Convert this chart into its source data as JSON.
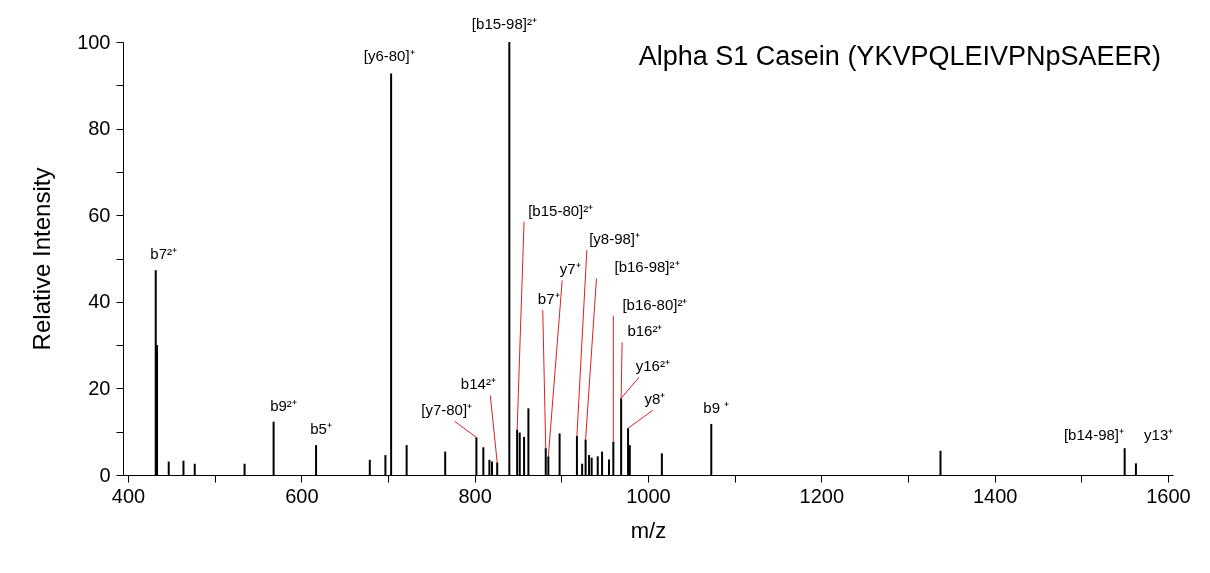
{
  "chart_data": {
    "type": "bar",
    "title": "Alpha S1 Casein (YKVPQLEIVPNpSAEER)",
    "xlabel": "m/z",
    "ylabel": "Relative Intensity",
    "x": [
      432,
      433.5,
      447,
      464,
      477,
      534.5,
      568,
      617,
      679,
      697,
      703.6,
      721.5,
      766,
      802,
      810,
      817,
      820,
      826,
      838,
      840,
      849,
      852,
      857,
      862,
      882,
      885,
      898,
      918,
      924,
      928,
      932,
      935,
      942,
      947,
      955,
      960,
      969,
      977,
      979,
      1016,
      1073,
      1337.5,
      1550,
      1563
    ],
    "series": [
      {
        "color": "#000000",
        "values": [
          47.3,
          30,
          3.1,
          3.3,
          2.6,
          2.6,
          12.3,
          6.9,
          3.5,
          4.6,
          92.7,
          6.9,
          5.4,
          8.7,
          6.4,
          3.5,
          3.1,
          2.9,
          null,
          100,
          10.5,
          9.8,
          8.8,
          15.4,
          6.2,
          4.3,
          9.6,
          9.0,
          2.6,
          8.2,
          4.6,
          4.0,
          4.3,
          5.4,
          3.6,
          7.7,
          17.7,
          10.8,
          6.9,
          5.0,
          11.8,
          5.6,
          6.2,
          2.7
        ]
      }
    ],
    "xlim": [
      400,
      1600
    ],
    "xticks": [
      400,
      {
        "value": 500,
        "label": null
      },
      600,
      {
        "value": 700,
        "label": null
      },
      800,
      {
        "value": 900,
        "label": null
      },
      1000,
      {
        "value": 1100,
        "label": null
      },
      1200,
      {
        "value": 1300,
        "label": null
      },
      1400,
      {
        "value": 1500,
        "label": null
      },
      1600
    ],
    "ylim": [
      0,
      100
    ],
    "yticks": [
      0,
      {
        "value": 10,
        "label": null
      },
      20,
      {
        "value": 30,
        "label": null
      },
      40,
      {
        "value": 50,
        "label": null
      },
      60,
      {
        "value": 70,
        "label": null
      },
      80,
      {
        "value": 90,
        "label": null
      },
      100
    ],
    "grid": false,
    "annotations": [
      {
        "text": "b7²⁺",
        "x": 432,
        "y": 47.3
      },
      {
        "text": "b9²⁺",
        "x": 568,
        "y": 12.3
      },
      {
        "text": "b5⁺",
        "x": 617,
        "y": 6.9
      },
      {
        "text": "[y6-80]⁺",
        "x": 703.6,
        "y": 92.7
      },
      {
        "text": "[b15-98]²⁺",
        "x": 840,
        "y": 100
      },
      {
        "text": "[y7-80]⁺",
        "x": 802,
        "y": 8.7
      },
      {
        "text": "b14²⁺",
        "x": 826,
        "y": 2.9
      },
      {
        "text": "[b15-80]²⁺",
        "x": 849,
        "y": 10.5
      },
      {
        "text": "b7⁺",
        "x": 882,
        "y": 6.2
      },
      {
        "text": "y7⁺",
        "x": 885,
        "y": 4.3
      },
      {
        "text": "[y8-98]⁺",
        "x": 918,
        "y": 9.0
      },
      {
        "text": "[b16-98]²⁺",
        "x": 928,
        "y": 8.2
      },
      {
        "text": "[b16-80]²⁺",
        "x": 960,
        "y": 7.7
      },
      {
        "text": "b16²⁺",
        "x": 969,
        "y": 17.7
      },
      {
        "text": "y16²⁺",
        "x": 969,
        "y": 17.7
      },
      {
        "text": "y8⁺",
        "x": 977,
        "y": 10.8
      },
      {
        "text": "b9 ⁺",
        "x": 1073,
        "y": 11.8
      },
      {
        "text": "[b14-98]⁺",
        "x": 1550,
        "y": 6.2
      },
      {
        "text": "y13⁺",
        "x": 1563,
        "y": 2.7
      }
    ]
  }
}
